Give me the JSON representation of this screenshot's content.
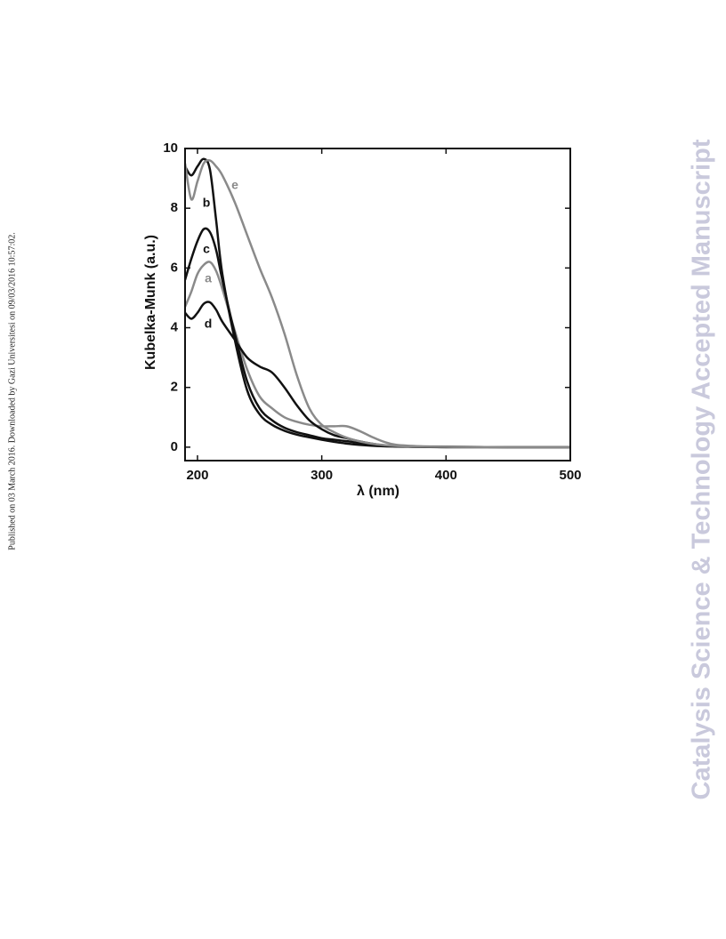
{
  "side_note": "Published on 03 March 2016. Downloaded by Gazi Universitesi on 09/03/2016 10:57:02.",
  "watermark": "Catalysis Science & Technology Accepted Manuscript",
  "chart_data": {
    "type": "line",
    "x_label": "λ (nm)",
    "y_label": "Kubelka-Munk (a.u.)",
    "x": [
      190,
      195,
      200,
      205,
      210,
      215,
      220,
      230,
      240,
      250,
      260,
      270,
      280,
      290,
      300,
      310,
      320,
      330,
      340,
      350,
      360,
      380,
      400,
      450,
      500
    ],
    "series": [
      {
        "name": "a",
        "color": "#8a8a8a",
        "values": [
          4.7,
          5.2,
          5.8,
          6.1,
          6.2,
          5.9,
          5.3,
          3.9,
          2.6,
          1.7,
          1.3,
          1.0,
          0.85,
          0.75,
          0.7,
          0.7,
          0.7,
          0.55,
          0.35,
          0.18,
          0.08,
          0.03,
          0.02,
          0,
          0
        ]
      },
      {
        "name": "b",
        "color": "#111111",
        "values": [
          9.4,
          9.1,
          9.4,
          9.65,
          9.3,
          7.6,
          5.8,
          3.6,
          1.9,
          1.1,
          0.75,
          0.55,
          0.42,
          0.33,
          0.25,
          0.18,
          0.12,
          0.08,
          0.05,
          0.03,
          0.02,
          0.01,
          0,
          0,
          0
        ]
      },
      {
        "name": "c",
        "color": "#111111",
        "values": [
          5.6,
          6.3,
          6.9,
          7.3,
          7.2,
          6.6,
          5.6,
          3.8,
          2.2,
          1.3,
          0.9,
          0.65,
          0.5,
          0.4,
          0.3,
          0.25,
          0.2,
          0.14,
          0.09,
          0.05,
          0.03,
          0.01,
          0,
          0,
          0
        ]
      },
      {
        "name": "d",
        "color": "#111111",
        "values": [
          4.5,
          4.3,
          4.5,
          4.8,
          4.85,
          4.6,
          4.2,
          3.6,
          3.0,
          2.7,
          2.5,
          2.0,
          1.4,
          0.9,
          0.6,
          0.4,
          0.3,
          0.2,
          0.12,
          0.06,
          0.03,
          0.01,
          0.01,
          0,
          0
        ]
      },
      {
        "name": "e",
        "color": "#8a8a8a",
        "values": [
          9.5,
          8.3,
          8.9,
          9.5,
          9.6,
          9.4,
          9.1,
          8.2,
          7.1,
          6.0,
          5.0,
          3.8,
          2.4,
          1.3,
          0.75,
          0.5,
          0.32,
          0.2,
          0.12,
          0.07,
          0.04,
          0.02,
          0.01,
          0,
          0
        ]
      }
    ],
    "xlim": [
      190,
      500
    ],
    "ylim": [
      -0.45,
      10
    ],
    "xticks": [
      200,
      300,
      400,
      500
    ],
    "yticks": [
      0,
      2,
      4,
      6,
      8,
      10
    ]
  }
}
